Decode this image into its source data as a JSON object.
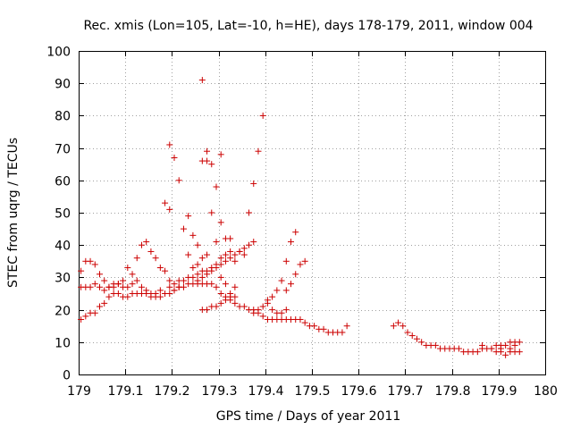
{
  "chart_data": {
    "type": "scatter",
    "title": "Rec. xmis (Lon=105, Lat=-10, h=HE), days 178-179, 2011, window 004",
    "xlabel": "GPS time / Days of year 2011",
    "ylabel": "STEC from uqrg / TECUs",
    "xlim": [
      179,
      180
    ],
    "ylim": [
      0,
      100
    ],
    "xticks": [
      "179",
      "179.1",
      "179.2",
      "179.3",
      "179.4",
      "179.5",
      "179.6",
      "179.7",
      "179.8",
      "179.9",
      "180"
    ],
    "yticks": [
      "0",
      "10",
      "20",
      "30",
      "40",
      "50",
      "60",
      "70",
      "80",
      "90",
      "100"
    ],
    "grid": true,
    "legend": "none",
    "marker": "plus",
    "color": "#cc0000",
    "series": [
      {
        "points": [
          [
            179.005,
            17
          ],
          [
            179.015,
            18
          ],
          [
            179.025,
            19
          ],
          [
            179.035,
            19
          ],
          [
            179.045,
            21
          ],
          [
            179.055,
            22
          ],
          [
            179.065,
            24
          ],
          [
            179.075,
            25
          ],
          [
            179.085,
            25
          ],
          [
            179.095,
            24
          ],
          [
            179.105,
            24
          ],
          [
            179.115,
            25
          ],
          [
            179.125,
            25
          ],
          [
            179.135,
            25
          ],
          [
            179.145,
            25
          ],
          [
            179.155,
            24
          ],
          [
            179.165,
            24
          ],
          [
            179.175,
            24
          ],
          [
            179.185,
            25
          ],
          [
            179.195,
            25
          ],
          [
            179.205,
            26
          ],
          [
            179.215,
            27
          ],
          [
            179.225,
            27
          ],
          [
            179.235,
            28
          ],
          [
            179.245,
            28
          ],
          [
            179.255,
            28
          ],
          [
            179.265,
            28
          ],
          [
            179.275,
            28
          ],
          [
            179.285,
            28
          ],
          [
            179.295,
            27
          ],
          [
            179.305,
            25
          ],
          [
            179.315,
            24
          ],
          [
            179.325,
            23
          ],
          [
            179.335,
            22
          ],
          [
            179.345,
            21
          ],
          [
            179.355,
            21
          ],
          [
            179.365,
            20
          ],
          [
            179.375,
            20
          ],
          [
            179.385,
            19
          ],
          [
            179.395,
            18
          ],
          [
            179.405,
            17
          ],
          [
            179.415,
            17
          ],
          [
            179.425,
            17
          ],
          [
            179.435,
            17
          ],
          [
            179.445,
            17
          ],
          [
            179.455,
            17
          ],
          [
            179.465,
            17
          ],
          [
            179.475,
            17
          ],
          [
            179.485,
            16
          ],
          [
            179.495,
            15
          ],
          [
            179.505,
            15
          ],
          [
            179.515,
            14
          ],
          [
            179.525,
            14
          ],
          [
            179.535,
            13
          ],
          [
            179.545,
            13
          ],
          [
            179.555,
            13
          ],
          [
            179.565,
            13
          ],
          [
            179.575,
            15
          ],
          [
            179.675,
            15
          ],
          [
            179.685,
            16
          ],
          [
            179.695,
            15
          ],
          [
            179.705,
            13
          ],
          [
            179.715,
            12
          ],
          [
            179.725,
            11
          ],
          [
            179.735,
            10
          ],
          [
            179.745,
            9
          ],
          [
            179.755,
            9
          ],
          [
            179.765,
            9
          ],
          [
            179.775,
            8
          ],
          [
            179.785,
            8
          ],
          [
            179.795,
            8
          ],
          [
            179.805,
            8
          ],
          [
            179.815,
            8
          ],
          [
            179.825,
            7
          ],
          [
            179.835,
            7
          ],
          [
            179.845,
            7
          ],
          [
            179.855,
            7
          ],
          [
            179.865,
            8
          ],
          [
            179.875,
            8
          ],
          [
            179.885,
            8
          ],
          [
            179.895,
            7
          ],
          [
            179.905,
            7
          ],
          [
            179.915,
            6
          ],
          [
            179.925,
            7
          ],
          [
            179.935,
            7
          ],
          [
            179.945,
            7
          ],
          [
            179.865,
            9
          ],
          [
            179.885,
            8
          ],
          [
            179.895,
            9
          ],
          [
            179.905,
            9
          ],
          [
            179.915,
            9
          ],
          [
            179.925,
            10
          ],
          [
            179.935,
            10
          ],
          [
            179.945,
            10
          ],
          [
            179.905,
            8
          ],
          [
            179.925,
            8
          ],
          [
            179.935,
            9
          ],
          [
            179.005,
            32
          ],
          [
            179.015,
            35
          ],
          [
            179.025,
            35
          ],
          [
            179.035,
            34
          ],
          [
            179.045,
            31
          ],
          [
            179.055,
            29
          ],
          [
            179.065,
            27
          ],
          [
            179.075,
            27
          ],
          [
            179.085,
            28
          ],
          [
            179.095,
            29
          ],
          [
            179.105,
            33
          ],
          [
            179.115,
            31
          ],
          [
            179.125,
            36
          ],
          [
            179.135,
            40
          ],
          [
            179.145,
            41
          ],
          [
            179.155,
            38
          ],
          [
            179.165,
            36
          ],
          [
            179.175,
            33
          ],
          [
            179.185,
            32
          ],
          [
            179.195,
            29
          ],
          [
            179.205,
            28
          ],
          [
            179.215,
            29
          ],
          [
            179.005,
            27
          ],
          [
            179.015,
            27
          ],
          [
            179.025,
            27
          ],
          [
            179.035,
            28
          ],
          [
            179.045,
            27
          ],
          [
            179.055,
            26
          ],
          [
            179.065,
            27
          ],
          [
            179.075,
            28
          ],
          [
            179.085,
            28
          ],
          [
            179.095,
            27
          ],
          [
            179.105,
            27
          ],
          [
            179.115,
            28
          ],
          [
            179.125,
            29
          ],
          [
            179.135,
            27
          ],
          [
            179.145,
            26
          ],
          [
            179.155,
            25
          ],
          [
            179.165,
            25
          ],
          [
            179.175,
            26
          ],
          [
            179.195,
            27
          ],
          [
            179.205,
            26
          ],
          [
            179.215,
            27
          ],
          [
            179.225,
            29
          ],
          [
            179.235,
            30
          ],
          [
            179.245,
            33
          ],
          [
            179.255,
            34
          ],
          [
            179.265,
            36
          ],
          [
            179.275,
            37
          ],
          [
            179.245,
            30
          ],
          [
            179.255,
            31
          ],
          [
            179.265,
            32
          ],
          [
            179.275,
            32
          ],
          [
            179.285,
            33
          ],
          [
            179.295,
            34
          ],
          [
            179.305,
            36
          ],
          [
            179.315,
            37
          ],
          [
            179.325,
            38
          ],
          [
            179.255,
            29
          ],
          [
            179.265,
            30
          ],
          [
            179.275,
            31
          ],
          [
            179.285,
            32
          ],
          [
            179.295,
            33
          ],
          [
            179.305,
            34
          ],
          [
            179.315,
            35
          ],
          [
            179.325,
            36
          ],
          [
            179.335,
            37
          ],
          [
            179.345,
            38
          ],
          [
            179.355,
            39
          ],
          [
            179.365,
            40
          ],
          [
            179.375,
            41
          ],
          [
            179.195,
            71
          ],
          [
            179.205,
            67
          ],
          [
            179.215,
            60
          ],
          [
            179.225,
            45
          ],
          [
            179.235,
            37
          ],
          [
            179.235,
            49
          ],
          [
            179.245,
            43
          ],
          [
            179.255,
            40
          ],
          [
            179.185,
            53
          ],
          [
            179.195,
            51
          ],
          [
            179.265,
            91
          ],
          [
            179.265,
            66
          ],
          [
            179.275,
            66
          ],
          [
            179.285,
            65
          ],
          [
            179.295,
            58
          ],
          [
            179.305,
            47
          ],
          [
            179.275,
            69
          ],
          [
            179.285,
            50
          ],
          [
            179.295,
            41
          ],
          [
            179.305,
            68
          ],
          [
            179.315,
            42
          ],
          [
            179.325,
            42
          ],
          [
            179.335,
            35
          ],
          [
            179.265,
            20
          ],
          [
            179.275,
            20
          ],
          [
            179.285,
            21
          ],
          [
            179.295,
            21
          ],
          [
            179.305,
            22
          ],
          [
            179.315,
            23
          ],
          [
            179.325,
            24
          ],
          [
            179.335,
            24
          ],
          [
            179.305,
            30
          ],
          [
            179.315,
            28
          ],
          [
            179.325,
            25
          ],
          [
            179.335,
            27
          ],
          [
            179.345,
            38
          ],
          [
            179.355,
            37
          ],
          [
            179.365,
            50
          ],
          [
            179.375,
            59
          ],
          [
            179.385,
            69
          ],
          [
            179.395,
            80
          ],
          [
            179.405,
            22
          ],
          [
            179.415,
            20
          ],
          [
            179.425,
            19
          ],
          [
            179.435,
            19
          ],
          [
            179.445,
            20
          ],
          [
            179.375,
            19
          ],
          [
            179.385,
            20
          ],
          [
            179.395,
            21
          ],
          [
            179.405,
            23
          ],
          [
            179.415,
            24
          ],
          [
            179.425,
            26
          ],
          [
            179.435,
            29
          ],
          [
            179.445,
            35
          ],
          [
            179.455,
            41
          ],
          [
            179.465,
            44
          ],
          [
            179.445,
            26
          ],
          [
            179.455,
            28
          ],
          [
            179.465,
            31
          ],
          [
            179.475,
            34
          ],
          [
            179.485,
            35
          ]
        ]
      }
    ]
  }
}
